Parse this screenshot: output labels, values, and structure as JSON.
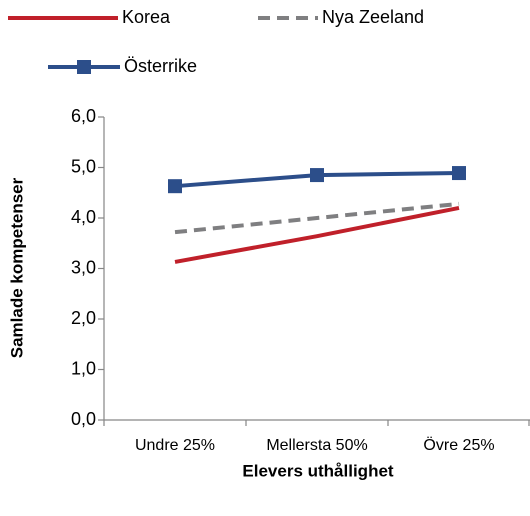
{
  "chart_data": {
    "type": "line",
    "categories": [
      "Undre 25%",
      "Mellersta 50%",
      "Övre 25%"
    ],
    "series": [
      {
        "name": "Korea",
        "color": "#c0202a",
        "line_style": "solid",
        "marker": "none",
        "values": [
          3.13,
          3.64,
          4.2
        ]
      },
      {
        "name": "Nya Zeeland",
        "color": "#7f7f81",
        "line_style": "dashed",
        "marker": "none",
        "values": [
          3.72,
          4.0,
          4.28
        ]
      },
      {
        "name": "Österrike",
        "color": "#2c4e8a",
        "line_style": "solid",
        "marker": "square",
        "values": [
          4.63,
          4.85,
          4.89
        ]
      }
    ],
    "x_label": "Elevers uthållighet",
    "y_label": "Samlade kompetenser",
    "ylim": [
      0,
      6
    ],
    "yticks": [
      {
        "value": 0,
        "label": "0,0"
      },
      {
        "value": 1,
        "label": "1,0"
      },
      {
        "value": 2,
        "label": "2,0"
      },
      {
        "value": 3,
        "label": "3,0"
      },
      {
        "value": 4,
        "label": "4,0"
      },
      {
        "value": 5,
        "label": "5,0"
      },
      {
        "value": 6,
        "label": "6,0"
      }
    ],
    "grid": false,
    "legend": "top"
  }
}
